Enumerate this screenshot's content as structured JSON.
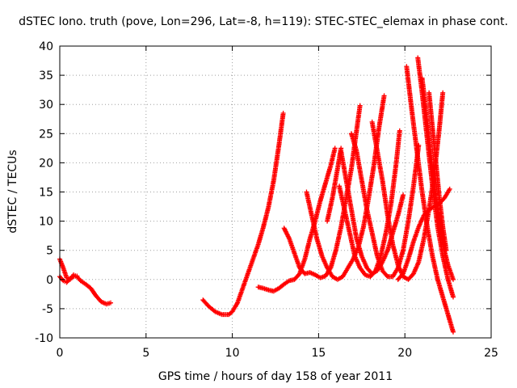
{
  "chart_data": {
    "type": "scatter",
    "title": "dSTEC Iono. truth (pove, Lon=296, Lat=-8, h=119): STEC-STEC_elemax in phase cont.",
    "xlabel": "GPS time / hours of day 158 of year 2011",
    "ylabel": "dSTEC  / TECUs",
    "xlim": [
      0,
      25
    ],
    "ylim": [
      -10,
      40
    ],
    "xticks": [
      "0",
      "5",
      "10",
      "15",
      "20",
      "25"
    ],
    "yticks": [
      "-10",
      "-5",
      "0",
      "5",
      "10",
      "15",
      "20",
      "25",
      "30",
      "35",
      "40"
    ],
    "grid": true,
    "marker": "plus",
    "color": "#ff0000",
    "series": [
      {
        "points": [
          [
            0.0,
            3.5
          ],
          [
            0.2,
            2.0
          ],
          [
            0.4,
            0.3
          ],
          [
            0.6,
            0.0
          ],
          [
            0.8,
            0.8
          ],
          [
            1.0,
            0.5
          ],
          [
            1.2,
            -0.2
          ],
          [
            1.5,
            -0.8
          ],
          [
            1.8,
            -1.5
          ],
          [
            2.1,
            -2.8
          ],
          [
            2.4,
            -3.8
          ],
          [
            2.7,
            -4.2
          ],
          [
            2.95,
            -4.0
          ]
        ]
      },
      {
        "points": [
          [
            0.0,
            0.5
          ],
          [
            0.2,
            -0.2
          ],
          [
            0.4,
            -0.5
          ],
          [
            0.6,
            0.2
          ],
          [
            0.8,
            0.5
          ],
          [
            1.0,
            0.6
          ]
        ]
      },
      {
        "points": [
          [
            8.3,
            -3.5
          ],
          [
            8.6,
            -4.5
          ],
          [
            9.0,
            -5.5
          ],
          [
            9.4,
            -6.0
          ],
          [
            9.8,
            -6.0
          ],
          [
            10.0,
            -5.5
          ],
          [
            10.3,
            -4.0
          ],
          [
            10.6,
            -1.5
          ],
          [
            10.9,
            1.0
          ],
          [
            11.2,
            3.5
          ],
          [
            11.5,
            6.0
          ],
          [
            11.8,
            9.0
          ],
          [
            12.1,
            12.5
          ],
          [
            12.4,
            17.0
          ],
          [
            12.7,
            23.0
          ],
          [
            12.95,
            28.5
          ]
        ]
      },
      {
        "points": [
          [
            11.5,
            -1.3
          ],
          [
            11.8,
            -1.5
          ],
          [
            12.1,
            -1.8
          ],
          [
            12.4,
            -2.0
          ],
          [
            12.7,
            -1.5
          ],
          [
            13.0,
            -0.8
          ],
          [
            13.3,
            -0.2
          ],
          [
            13.6,
            0.0
          ],
          [
            13.9,
            1.0
          ],
          [
            14.2,
            3.5
          ],
          [
            14.5,
            7.0
          ],
          [
            14.8,
            10.0
          ],
          [
            15.1,
            13.5
          ],
          [
            15.4,
            16.5
          ],
          [
            15.7,
            19.5
          ],
          [
            15.95,
            22.5
          ]
        ]
      },
      {
        "points": [
          [
            13.0,
            8.8
          ],
          [
            13.3,
            7.0
          ],
          [
            13.6,
            4.5
          ],
          [
            13.9,
            2.0
          ],
          [
            14.2,
            1.0
          ],
          [
            14.5,
            1.2
          ],
          [
            14.8,
            0.8
          ],
          [
            15.1,
            0.3
          ],
          [
            15.4,
            0.6
          ],
          [
            15.7,
            2.0
          ],
          [
            16.0,
            5.0
          ],
          [
            16.3,
            9.0
          ],
          [
            16.6,
            14.0
          ],
          [
            16.9,
            19.0
          ],
          [
            17.2,
            25.5
          ],
          [
            17.4,
            29.8
          ]
        ]
      },
      {
        "points": [
          [
            14.3,
            15.0
          ],
          [
            14.6,
            11.0
          ],
          [
            14.9,
            7.0
          ],
          [
            15.2,
            4.0
          ],
          [
            15.5,
            2.0
          ],
          [
            15.8,
            0.5
          ],
          [
            16.1,
            0.0
          ],
          [
            16.4,
            0.5
          ],
          [
            16.7,
            2.0
          ],
          [
            17.0,
            3.5
          ],
          [
            17.3,
            5.5
          ],
          [
            17.6,
            9.0
          ],
          [
            17.9,
            14.0
          ],
          [
            18.2,
            19.5
          ],
          [
            18.5,
            26.0
          ],
          [
            18.8,
            31.5
          ]
        ]
      },
      {
        "points": [
          [
            15.5,
            10.0
          ],
          [
            15.8,
            14.0
          ],
          [
            16.1,
            19.0
          ],
          [
            16.3,
            22.5
          ]
        ]
      },
      {
        "points": [
          [
            16.3,
            22.0
          ],
          [
            16.6,
            17.0
          ],
          [
            16.9,
            12.0
          ],
          [
            17.2,
            7.0
          ],
          [
            17.5,
            4.0
          ],
          [
            17.8,
            2.0
          ],
          [
            18.1,
            1.0
          ],
          [
            18.4,
            1.5
          ],
          [
            18.7,
            3.0
          ],
          [
            19.0,
            5.0
          ],
          [
            19.3,
            8.0
          ],
          [
            19.6,
            11.0
          ],
          [
            19.9,
            14.5
          ]
        ]
      },
      {
        "points": [
          [
            16.2,
            16.0
          ],
          [
            16.5,
            12.0
          ],
          [
            16.8,
            8.0
          ],
          [
            17.1,
            4.0
          ],
          [
            17.4,
            2.0
          ],
          [
            17.7,
            0.8
          ],
          [
            18.0,
            0.5
          ],
          [
            18.3,
            1.5
          ],
          [
            18.6,
            4.0
          ],
          [
            18.9,
            8.0
          ],
          [
            19.2,
            13.0
          ],
          [
            19.5,
            20.0
          ],
          [
            19.7,
            25.5
          ]
        ]
      },
      {
        "points": [
          [
            16.9,
            25.0
          ],
          [
            17.2,
            22.0
          ],
          [
            17.5,
            17.0
          ],
          [
            17.8,
            12.0
          ],
          [
            18.1,
            8.0
          ],
          [
            18.4,
            4.0
          ],
          [
            18.7,
            1.5
          ],
          [
            19.0,
            0.5
          ],
          [
            19.3,
            0.5
          ],
          [
            19.6,
            2.0
          ],
          [
            19.9,
            5.0
          ],
          [
            20.2,
            10.0
          ],
          [
            20.5,
            16.0
          ],
          [
            20.8,
            23.0
          ]
        ]
      },
      {
        "points": [
          [
            18.1,
            27.0
          ],
          [
            18.4,
            22.0
          ],
          [
            18.7,
            17.0
          ],
          [
            19.0,
            11.0
          ],
          [
            19.3,
            6.0
          ],
          [
            19.6,
            2.5
          ],
          [
            19.9,
            0.5
          ],
          [
            20.2,
            0.0
          ],
          [
            20.5,
            1.0
          ],
          [
            20.8,
            3.0
          ],
          [
            21.1,
            7.0
          ],
          [
            21.4,
            12.0
          ],
          [
            21.7,
            18.0
          ],
          [
            22.0,
            26.0
          ],
          [
            22.2,
            32.0
          ]
        ]
      },
      {
        "points": [
          [
            19.6,
            0.0
          ],
          [
            19.9,
            1.0
          ],
          [
            20.2,
            3.5
          ],
          [
            20.5,
            6.5
          ],
          [
            20.8,
            9.0
          ],
          [
            21.1,
            11.0
          ],
          [
            21.4,
            12.0
          ],
          [
            21.7,
            12.5
          ],
          [
            22.0,
            13.0
          ],
          [
            22.3,
            14.0
          ],
          [
            22.6,
            15.5
          ]
        ]
      },
      {
        "points": [
          [
            20.1,
            36.5
          ],
          [
            20.4,
            29.0
          ],
          [
            20.7,
            22.0
          ],
          [
            21.0,
            15.0
          ],
          [
            21.3,
            9.0
          ],
          [
            21.6,
            4.0
          ],
          [
            21.9,
            0.0
          ],
          [
            22.2,
            -3.0
          ],
          [
            22.5,
            -6.0
          ],
          [
            22.8,
            -9.0
          ]
        ]
      },
      {
        "points": [
          [
            20.75,
            38.0
          ],
          [
            21.0,
            32.0
          ],
          [
            21.3,
            24.0
          ],
          [
            21.6,
            16.0
          ],
          [
            21.9,
            9.0
          ],
          [
            22.2,
            4.0
          ],
          [
            22.5,
            0.0
          ],
          [
            22.8,
            -3.0
          ]
        ]
      },
      {
        "points": [
          [
            21.0,
            34.5
          ],
          [
            21.3,
            27.0
          ],
          [
            21.6,
            19.0
          ],
          [
            21.9,
            12.0
          ],
          [
            22.2,
            6.0
          ],
          [
            22.5,
            2.5
          ],
          [
            22.8,
            0.0
          ]
        ]
      },
      {
        "points": [
          [
            21.4,
            32.0
          ],
          [
            21.6,
            26.0
          ],
          [
            21.8,
            20.0
          ],
          [
            22.0,
            14.0
          ],
          [
            22.2,
            9.0
          ],
          [
            22.4,
            5.0
          ]
        ]
      }
    ]
  }
}
